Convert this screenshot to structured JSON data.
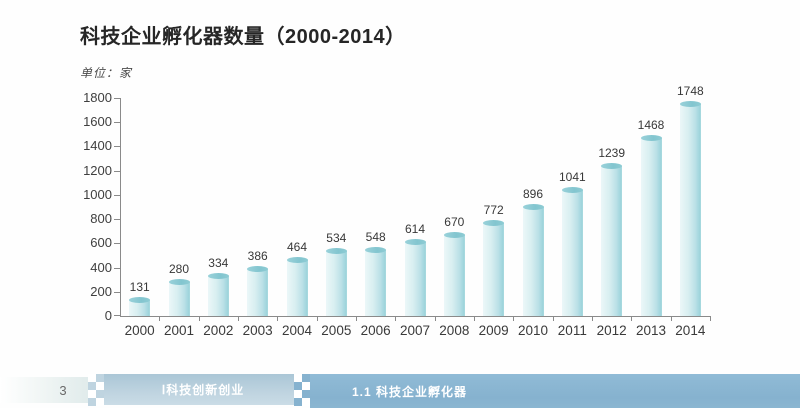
{
  "title": "科技企业孵化器数量（2000-2014）",
  "unit_label": "单位：家",
  "chart_data": {
    "type": "bar",
    "title": "科技企业孵化器数量（2000-2014）",
    "categories": [
      "2000",
      "2001",
      "2002",
      "2003",
      "2004",
      "2005",
      "2006",
      "2007",
      "2008",
      "2009",
      "2010",
      "2011",
      "2012",
      "2013",
      "2014"
    ],
    "values": [
      131,
      280,
      334,
      386,
      464,
      534,
      548,
      614,
      670,
      772,
      896,
      1041,
      1239,
      1468,
      1748
    ],
    "xlabel": "",
    "ylabel": "单位：家",
    "ylim": [
      0,
      1800
    ],
    "ytick_step": 200,
    "grid": false,
    "legend": "none",
    "bar_style": "cylinder",
    "data_labels": true
  },
  "colors": {
    "bar_body_light": "#ebf7f8",
    "bar_body_dark": "#9ed4dc",
    "bar_cap": "#82c5cf",
    "axis": "#8a8a8a",
    "title_text": "#262626",
    "footer_left_bg": "#e0ebeb",
    "footer_mid_bg": "#bfd4e0",
    "footer_right_bg": "#86b2cf",
    "footer_text": "#ffffff"
  },
  "footer": {
    "page_number": "3",
    "section_label": "Ⅰ科技创新创业",
    "subsection_label": "1.1 科技企业孵化器"
  }
}
